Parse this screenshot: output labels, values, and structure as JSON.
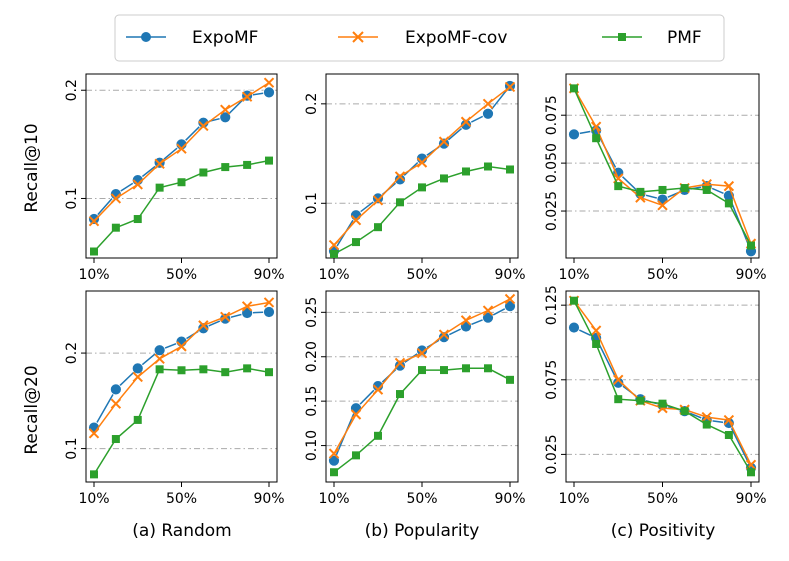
{
  "chart_data": {
    "type": "line",
    "legend": {
      "placement": "top-center",
      "entries": [
        {
          "name": "ExpoMF",
          "color": "#1f77b4",
          "marker": "circle"
        },
        {
          "name": "ExpoMF-cov",
          "color": "#ff7f0e",
          "marker": "x"
        },
        {
          "name": "PMF",
          "color": "#2ca02c",
          "marker": "square"
        }
      ]
    },
    "x": [
      10,
      20,
      30,
      40,
      50,
      60,
      70,
      80,
      90
    ],
    "x_tick_labels": [
      "10%",
      "50%",
      "90%"
    ],
    "row_labels": [
      "Recall@10",
      "Recall@20"
    ],
    "column_labels": [
      "(a) Random",
      "(b) Popularity",
      "(c) Positivity"
    ],
    "panels": [
      {
        "row": 0,
        "col": 0,
        "ylim": [
          0.045,
          0.215
        ],
        "yticks": [
          0.1,
          0.2
        ],
        "ytick_labels": [
          "0.1",
          "0.2"
        ],
        "series": [
          {
            "name": "ExpoMF",
            "values": [
              0.081,
              0.104,
              0.117,
              0.133,
              0.15,
              0.17,
              0.175,
              0.195,
              0.198
            ]
          },
          {
            "name": "ExpoMF-cov",
            "values": [
              0.079,
              0.1,
              0.113,
              0.132,
              0.146,
              0.167,
              0.182,
              0.194,
              0.207
            ]
          },
          {
            "name": "PMF",
            "values": [
              0.051,
              0.073,
              0.081,
              0.11,
              0.115,
              0.124,
              0.129,
              0.131,
              0.135
            ]
          }
        ]
      },
      {
        "row": 0,
        "col": 1,
        "ylim": [
          0.045,
          0.23
        ],
        "yticks": [
          0.1,
          0.2
        ],
        "ytick_labels": [
          "0.1",
          "0.2"
        ],
        "series": [
          {
            "name": "ExpoMF",
            "values": [
              0.052,
              0.088,
              0.105,
              0.124,
              0.145,
              0.16,
              0.179,
              0.19,
              0.218
            ]
          },
          {
            "name": "ExpoMF-cov",
            "values": [
              0.058,
              0.083,
              0.103,
              0.127,
              0.141,
              0.162,
              0.182,
              0.2,
              0.217
            ]
          },
          {
            "name": "PMF",
            "values": [
              0.049,
              0.061,
              0.076,
              0.101,
              0.116,
              0.125,
              0.132,
              0.137,
              0.134
            ]
          }
        ]
      },
      {
        "row": 0,
        "col": 2,
        "ylim": [
          0.0005,
          0.0965
        ],
        "yticks": [
          0.025,
          0.05,
          0.075
        ],
        "ytick_labels": [
          "0.025",
          "0.050",
          "0.075"
        ],
        "series": [
          {
            "name": "ExpoMF",
            "values": [
              0.065,
              0.067,
              0.045,
              0.034,
              0.031,
              0.036,
              0.038,
              0.033,
              0.004
            ]
          },
          {
            "name": "ExpoMF-cov",
            "values": [
              0.089,
              0.069,
              0.042,
              0.032,
              0.028,
              0.037,
              0.039,
              0.038,
              0.008
            ]
          },
          {
            "name": "PMF",
            "values": [
              0.089,
              0.063,
              0.038,
              0.035,
              0.036,
              0.037,
              0.036,
              0.029,
              0.007
            ]
          }
        ]
      },
      {
        "row": 1,
        "col": 0,
        "ylim": [
          0.065,
          0.265
        ],
        "yticks": [
          0.1,
          0.2
        ],
        "ytick_labels": [
          "0.1",
          "0.2"
        ],
        "series": [
          {
            "name": "ExpoMF",
            "values": [
              0.122,
              0.162,
              0.184,
              0.203,
              0.212,
              0.226,
              0.236,
              0.242,
              0.243
            ]
          },
          {
            "name": "ExpoMF-cov",
            "values": [
              0.116,
              0.147,
              0.175,
              0.194,
              0.207,
              0.229,
              0.238,
              0.249,
              0.253
            ]
          },
          {
            "name": "PMF",
            "values": [
              0.073,
              0.11,
              0.13,
              0.183,
              0.182,
              0.183,
              0.18,
              0.184,
              0.18
            ]
          }
        ]
      },
      {
        "row": 1,
        "col": 1,
        "ylim": [
          0.059,
          0.274
        ],
        "yticks": [
          0.1,
          0.15,
          0.2,
          0.25
        ],
        "ytick_labels": [
          "0.10",
          "0.15",
          "0.20",
          "0.25"
        ],
        "series": [
          {
            "name": "ExpoMF",
            "values": [
              0.083,
              0.142,
              0.167,
              0.19,
              0.207,
              0.222,
              0.234,
              0.244,
              0.257
            ]
          },
          {
            "name": "ExpoMF-cov",
            "values": [
              0.091,
              0.135,
              0.163,
              0.193,
              0.204,
              0.225,
              0.241,
              0.252,
              0.265
            ]
          },
          {
            "name": "PMF",
            "values": [
              0.07,
              0.089,
              0.111,
              0.158,
              0.185,
              0.185,
              0.187,
              0.187,
              0.174
            ]
          }
        ]
      },
      {
        "row": 1,
        "col": 2,
        "ylim": [
          0.0065,
          0.1345
        ],
        "yticks": [
          0.025,
          0.075,
          0.125
        ],
        "ytick_labels": [
          "0.025",
          "0.075",
          "0.125"
        ],
        "series": [
          {
            "name": "ExpoMF",
            "values": [
              0.11,
              0.103,
              0.073,
              0.062,
              0.058,
              0.054,
              0.048,
              0.046,
              0.016
            ]
          },
          {
            "name": "ExpoMF-cov",
            "values": [
              0.128,
              0.108,
              0.075,
              0.061,
              0.056,
              0.055,
              0.05,
              0.048,
              0.018
            ]
          },
          {
            "name": "PMF",
            "values": [
              0.128,
              0.099,
              0.062,
              0.061,
              0.059,
              0.054,
              0.045,
              0.038,
              0.013
            ]
          }
        ]
      }
    ]
  }
}
